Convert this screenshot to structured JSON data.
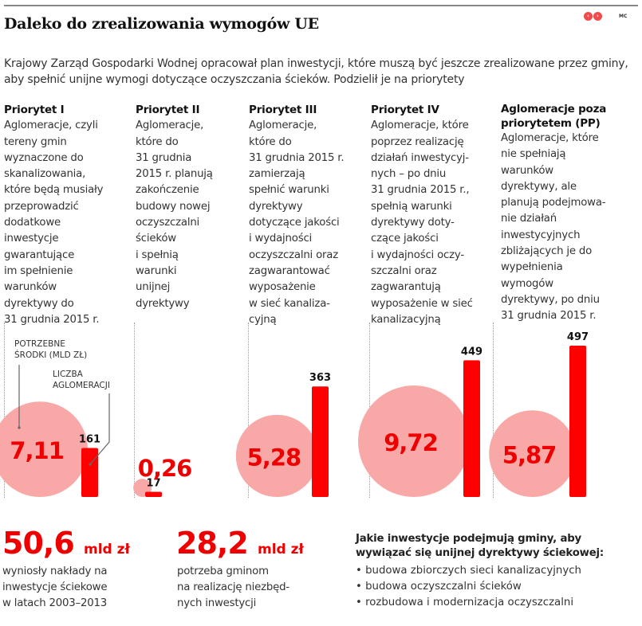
{
  "header": {
    "title": "Daleko do zrealizowania wymogów UE",
    "credit": "MC",
    "logo_icon": "publisher-logo-icon",
    "intro": "Krajowy Zarząd Gospodarki Wodnej opracował plan inwestycji, które muszą być jeszcze zrealizowane przez gminy, aby spełnić unijne wymogi dotyczące oczyszczania ścieków. Podzielił je na priorytety"
  },
  "columns": [
    {
      "heading": "Priorytet I",
      "desc": "Aglomeracje, czyli\ntereny gmin\nwyznaczone do\nskanalizowania,\nktóre będą musiały\nprzeprowadzić\ndodatkowe\ninwestycje\ngwarantujące\nim spełnienie\nwarunków\ndyrektywy do\n31 grudnia 2015 r."
    },
    {
      "heading": "Priorytet II",
      "desc": "Aglomeracje,\nktóre do\n31 grudnia\n2015 r. planują\nzakończenie\nbudowy nowej\noczyszczalni\nścieków\ni spełnią\nwarunki\nunijnej\ndyrektywy"
    },
    {
      "heading": "Priorytet III",
      "desc": "Aglomeracje,\nktóre do\n31 grudnia 2015 r.\nzamierzają\nspełnić warunki\ndyrektywy\ndotyczące jakości\ni wydajności\noczyszczalni oraz\nzagwarantować\nwyposażenie\nw sieć kanaliza-\ncyjną"
    },
    {
      "heading": "Priorytet IV",
      "desc": "Aglomeracje, które\npoprzez realizację\ndziałań inwestycyj-\nnych – po dniu\n31 grudnia 2015 r.,\nspełnią warunki\ndyrektywy doty-\nczące jakości\ni wydajności oczy-\nszczalni oraz\nzagwarantują\nwyposażenie w sieć\nkanalizacyjną"
    },
    {
      "heading": "Aglomeracje poza\npriorytetem (PP)",
      "desc": "Aglomeracje, które\nnie spełniają\nwarunków\ndyrektywy, ale\nplanują podejmowa-\nnie działań\ninwestycyjnych\nzbliżających je do\nwypełnienia\nwymogów\ndyrektywy, po dniu\n31 grudnia 2015 r."
    }
  ],
  "chart_data": {
    "type": "bar",
    "title": "Daleko do zrealizowania wymogów UE",
    "categories": [
      "Priorytet I",
      "Priorytet II",
      "Priorytet III",
      "Priorytet IV",
      "Aglomeracje poza priorytetem (PP)"
    ],
    "series": [
      {
        "name": "Potrzebne środki (mld zł)",
        "mark": "circle",
        "labels": [
          "7,11",
          "0,26",
          "5,28",
          "9,72",
          "5,87"
        ],
        "values": [
          7.11,
          0.26,
          5.28,
          9.72,
          5.87
        ]
      },
      {
        "name": "Liczba aglomeracji",
        "mark": "bar",
        "labels": [
          "161",
          "17",
          "363",
          "449",
          "497"
        ],
        "values": [
          161,
          17,
          363,
          449,
          497
        ]
      }
    ],
    "legend": [
      "POTRZEBNE\nŚRODKI (MLD ZŁ)",
      "LICZBA\nAGLOMERACJI"
    ],
    "xlabel": "",
    "ylabel": "",
    "grid": false,
    "colors": {
      "circle": "#f9a8a8",
      "bar": "#ff0000",
      "circle_label": "#ee0000",
      "bar_label": "#111111"
    }
  },
  "stats": [
    {
      "value": "50,6",
      "unit": "mld zł",
      "desc": "wyniosły nakłady na\ninwestycje ściekowe\nw latach 2003–2013"
    },
    {
      "value": "28,2",
      "unit": "mld zł",
      "desc": "potrzeba gminom\nna realizację niezbęd-\nnych inwestycji"
    }
  ],
  "investments": {
    "question": "Jakie inwestycje podejmują gminy, aby\nwywiązać się unijnej dyrektywy ściekowej:",
    "items": [
      "budowa zbiorczych sieci kanalizacyjnych",
      "budowa oczyszczalni ścieków",
      "rozbudowa i modernizacja oczyszczalni"
    ]
  }
}
